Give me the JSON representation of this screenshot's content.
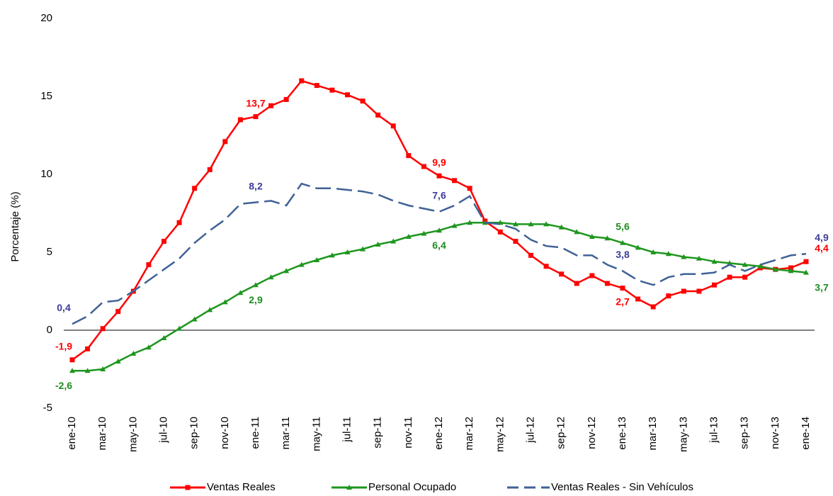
{
  "chart_data": {
    "type": "line",
    "y_label": "Porcentaje (%)",
    "categories": [
      "ene-10",
      null,
      "mar-10",
      null,
      "may-10",
      null,
      "jul-10",
      null,
      "sep-10",
      null,
      "nov-10",
      null,
      "ene-11",
      null,
      "mar-11",
      null,
      "may-11",
      null,
      "jul-11",
      null,
      "sep-11",
      null,
      "nov-11",
      null,
      "ene-12",
      null,
      "mar-12",
      null,
      "may-12",
      null,
      "jul-12",
      null,
      "sep-12",
      null,
      "nov-12",
      null,
      "ene-13",
      null,
      "mar-13",
      null,
      "may-13",
      null,
      "jul-13",
      null,
      "sep-13",
      null,
      "nov-13",
      null,
      "ene-14"
    ],
    "ylim": [
      -5,
      20
    ],
    "yticks": [
      -5,
      0,
      5,
      10,
      15,
      20
    ],
    "series": [
      {
        "name": "Ventas Reales",
        "color": "#ff0000",
        "label_color": "#ff0000",
        "marker": "square",
        "dash": false,
        "values": [
          -1.9,
          -1.2,
          0.1,
          1.2,
          2.5,
          4.2,
          5.7,
          6.9,
          9.1,
          10.3,
          12.1,
          13.5,
          13.7,
          14.4,
          14.8,
          16.0,
          15.7,
          15.4,
          15.1,
          14.7,
          13.8,
          13.1,
          11.2,
          10.5,
          9.9,
          9.6,
          9.1,
          7.0,
          6.3,
          5.7,
          4.8,
          4.1,
          3.6,
          3.0,
          3.5,
          3.0,
          2.7,
          2.0,
          1.5,
          2.2,
          2.5,
          2.5,
          2.9,
          3.4,
          3.4,
          4.0,
          3.9,
          4.0,
          4.4
        ],
        "value_labels": [
          "-1,9",
          null,
          null,
          null,
          null,
          null,
          null,
          null,
          null,
          null,
          null,
          null,
          "13,7",
          null,
          null,
          null,
          null,
          null,
          null,
          null,
          null,
          null,
          null,
          null,
          "9,9",
          null,
          null,
          null,
          null,
          null,
          null,
          null,
          null,
          null,
          null,
          null,
          "2,7",
          null,
          null,
          null,
          null,
          null,
          null,
          null,
          null,
          null,
          null,
          null,
          "4,4"
        ]
      },
      {
        "name": "Personal Ocupado",
        "color": "#1e961e",
        "label_color": "#1e8c1e",
        "marker": "triangle",
        "dash": false,
        "values": [
          -2.6,
          -2.6,
          -2.5,
          -2.0,
          -1.5,
          -1.1,
          -0.5,
          0.1,
          0.7,
          1.3,
          1.8,
          2.4,
          2.9,
          3.4,
          3.8,
          4.2,
          4.5,
          4.8,
          5.0,
          5.2,
          5.5,
          5.7,
          6.0,
          6.2,
          6.4,
          6.7,
          6.9,
          6.9,
          6.9,
          6.8,
          6.8,
          6.8,
          6.6,
          6.3,
          6.0,
          5.9,
          5.6,
          5.3,
          5.0,
          4.9,
          4.7,
          4.6,
          4.4,
          4.3,
          4.2,
          4.1,
          3.9,
          3.8,
          3.7
        ],
        "value_labels": [
          "-2,6",
          null,
          null,
          null,
          null,
          null,
          null,
          null,
          null,
          null,
          null,
          null,
          "2,9",
          null,
          null,
          null,
          null,
          null,
          null,
          null,
          null,
          null,
          null,
          null,
          "6,4",
          null,
          null,
          null,
          null,
          null,
          null,
          null,
          null,
          null,
          null,
          null,
          "5,6",
          null,
          null,
          null,
          null,
          null,
          null,
          null,
          null,
          null,
          null,
          null,
          "3,7"
        ]
      },
      {
        "name": "Ventas Reales - Sin Vehículos",
        "color": "#3f6296",
        "label_color": "#3c3c9a",
        "marker": "none",
        "dash": true,
        "values": [
          0.4,
          0.9,
          1.8,
          1.9,
          2.5,
          3.2,
          3.9,
          4.6,
          5.6,
          6.4,
          7.1,
          8.1,
          8.2,
          8.3,
          8.0,
          9.4,
          9.1,
          9.1,
          9.0,
          8.9,
          8.7,
          8.3,
          8.0,
          7.8,
          7.6,
          8.0,
          8.6,
          6.9,
          6.8,
          6.5,
          5.8,
          5.4,
          5.3,
          4.8,
          4.8,
          4.2,
          3.8,
          3.2,
          2.9,
          3.4,
          3.6,
          3.6,
          3.7,
          4.2,
          3.8,
          4.2,
          4.5,
          4.8,
          4.9
        ],
        "value_labels": [
          "0,4",
          null,
          null,
          null,
          null,
          null,
          null,
          null,
          null,
          null,
          null,
          null,
          "8,2",
          null,
          null,
          null,
          null,
          null,
          null,
          null,
          null,
          null,
          null,
          null,
          "7,6",
          null,
          null,
          null,
          null,
          null,
          null,
          null,
          null,
          null,
          null,
          null,
          "3,8",
          null,
          null,
          null,
          null,
          null,
          null,
          null,
          null,
          null,
          null,
          null,
          "4,9"
        ]
      }
    ],
    "legend": "bottom"
  }
}
